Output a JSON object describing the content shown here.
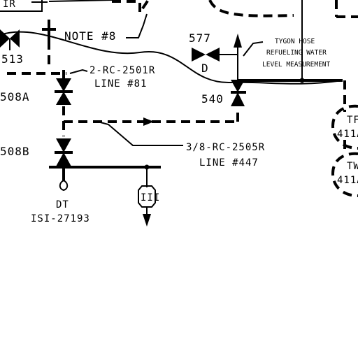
{
  "labels": {
    "top_left": "IR",
    "note": "NOTE #8",
    "valve_513": "513",
    "line_81_a": "2-RC-2501R",
    "line_81_b": "LINE #81",
    "valve_508a": "508A",
    "valve_508b": "508B",
    "valve_577": "577",
    "valve_577_d": "D",
    "tygon_a": "TYGON HOSE",
    "tygon_b": "REFUELING WATER",
    "tygon_c": "LEVEL MEASUREMENT",
    "valve_540": "540",
    "line_447_a": "3/8-RC-2505R",
    "line_447_b": "LINE #447",
    "dt_a": "DT",
    "dt_b": "ISI-27193",
    "hex_tag": "III",
    "tag_tf_a": "TF",
    "tag_tf_b": "411A",
    "tag_tw_a": "TW",
    "tag_tw_b": "411A"
  }
}
